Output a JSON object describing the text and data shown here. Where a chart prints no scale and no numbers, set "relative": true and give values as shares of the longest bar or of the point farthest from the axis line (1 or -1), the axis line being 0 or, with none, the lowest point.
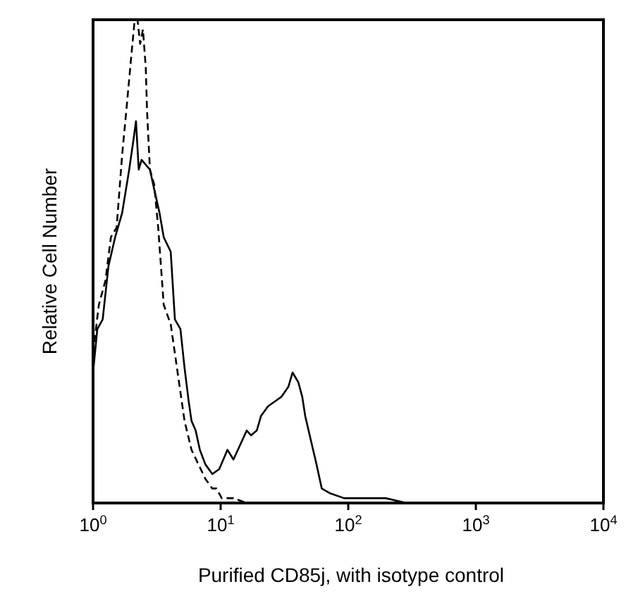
{
  "chart_data": {
    "type": "line",
    "relative": true,
    "log": "x",
    "xlabel": "Purified CD85j, with isotype control",
    "ylabel": "Relative Cell Number",
    "xlim": [
      1,
      10000
    ],
    "xticks": [
      {
        "value": 1,
        "label": "10$^{0}$"
      },
      {
        "value": 10,
        "label": "10$^{1}$"
      },
      {
        "value": 100,
        "label": "10$^{2}$"
      },
      {
        "value": 1000,
        "label": "10$^{3}$"
      },
      {
        "value": 10000,
        "label": "10$^{4}$"
      }
    ],
    "series": [
      {
        "color": "#000000",
        "line_style": "solid",
        "x": [
          1.0,
          1.08,
          1.19,
          1.32,
          1.49,
          1.69,
          1.92,
          2.07,
          2.17,
          2.28,
          2.4,
          2.59,
          2.79,
          3.01,
          3.32,
          3.58,
          4.06,
          4.38,
          4.84,
          5.21,
          5.62,
          5.91,
          6.37,
          6.87,
          7.59,
          8.6,
          9.74,
          10.5,
          11.3,
          12.6,
          14.2,
          16.0,
          17.3,
          19.2,
          20.7,
          23.5,
          26.5,
          30.0,
          33.9,
          36.6,
          40.6,
          43.6,
          46.0,
          50.9,
          56.4,
          62.0,
          72.2,
          92.6,
          119,
          196,
          286
        ],
        "values": [
          0.27,
          0.36,
          0.38,
          0.49,
          0.55,
          0.6,
          0.69,
          0.75,
          0.79,
          0.69,
          0.71,
          0.7,
          0.69,
          0.65,
          0.6,
          0.55,
          0.52,
          0.38,
          0.36,
          0.28,
          0.21,
          0.17,
          0.15,
          0.11,
          0.08,
          0.06,
          0.07,
          0.09,
          0.11,
          0.09,
          0.12,
          0.15,
          0.14,
          0.15,
          0.18,
          0.2,
          0.21,
          0.22,
          0.24,
          0.27,
          0.25,
          0.22,
          0.18,
          0.13,
          0.08,
          0.03,
          0.02,
          0.01,
          0.01,
          0.01,
          0
        ]
      },
      {
        "color": "#000000",
        "line_style": "dashed",
        "x": [
          1.0,
          1.11,
          1.25,
          1.38,
          1.53,
          1.69,
          1.82,
          1.97,
          2.12,
          2.23,
          2.34,
          2.46,
          2.59,
          2.65,
          2.79,
          3.01,
          3.24,
          3.58,
          4.06,
          4.6,
          5.21,
          5.91,
          6.7,
          7.59,
          8.6,
          9.27,
          10.2,
          12.6,
          16.0,
          26.5,
          72.2,
          153
        ],
        "values": [
          0.31,
          0.41,
          0.46,
          0.55,
          0.57,
          0.72,
          0.81,
          0.91,
          1.0,
          1.0,
          0.95,
          0.98,
          0.9,
          0.81,
          0.69,
          0.66,
          0.57,
          0.41,
          0.37,
          0.27,
          0.17,
          0.11,
          0.08,
          0.05,
          0.03,
          0.03,
          0.01,
          0.01,
          0,
          0,
          0,
          0
        ]
      }
    ]
  }
}
